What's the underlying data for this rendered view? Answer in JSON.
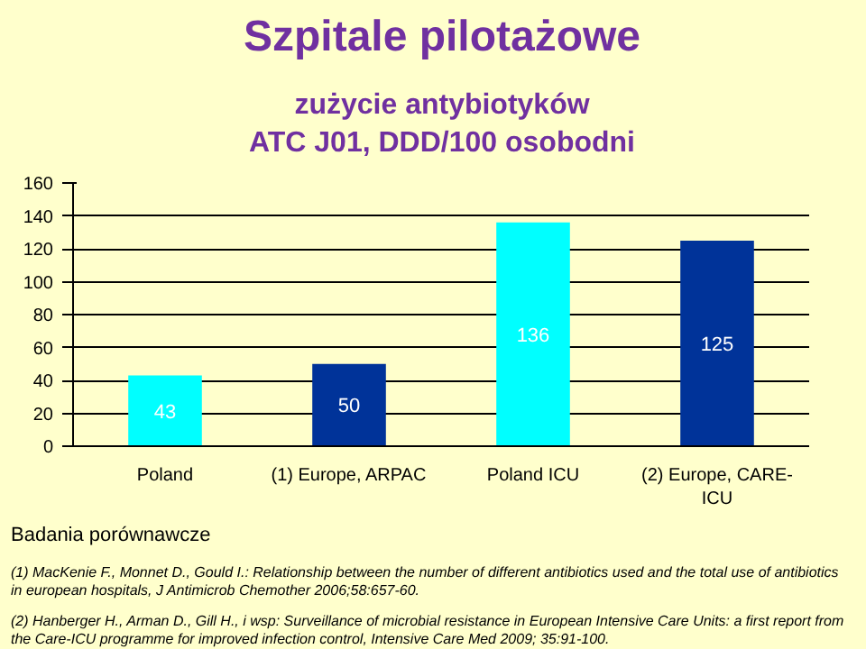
{
  "chart_data": {
    "type": "bar",
    "title": "Szpitale pilotażowe",
    "subtitle": "zużycie antybiotyków\nATC  J01, DDD/100 osobodni",
    "categories": [
      "Poland",
      "(1) Europe, ARPAC",
      "Poland ICU",
      "(2) Europe, CARE-ICU"
    ],
    "values": [
      43,
      50,
      136,
      125
    ],
    "colors": [
      "#00ffff",
      "#003399",
      "#00ffff",
      "#003399"
    ],
    "ylim": [
      0,
      160
    ],
    "yticks": [
      0,
      20,
      40,
      60,
      80,
      100,
      120,
      140,
      160
    ],
    "grid": "y",
    "data_labels": true,
    "annotations": [
      "Badania porównawcze",
      "(1) MacKenie F., Monnet D., Gould I.: Relationship between  the number of different antibiotics used and the total use of antibiotics in european hospitals, J Antimicrob Chemother 2006;58:657-60.",
      "(2) Hanberger H., Arman D., Gill H., i wsp: Surveillance of microbial resistance in European Intensive Care Units: a first report from the Care-ICU programme for improved infection control, Intensive Care Med 2009; 35:91-100."
    ]
  }
}
